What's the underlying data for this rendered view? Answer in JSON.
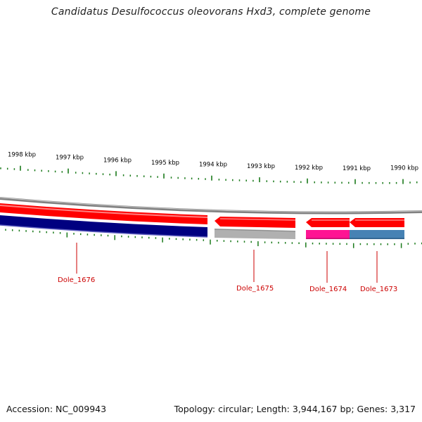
{
  "title": "Candidatus Desulfococcus oleovorans Hxd3, complete genome",
  "footer": {
    "accession": "Accession: NC_009943",
    "summary": "Topology: circular; Length: 3,944,167 bp; Genes: 3,317"
  },
  "ruler": {
    "ticks": [
      {
        "kbp": 1998,
        "label": "1998 kbp"
      },
      {
        "kbp": 1997,
        "label": "1997 kbp"
      },
      {
        "kbp": 1996,
        "label": "1996 kbp"
      },
      {
        "kbp": 1995,
        "label": "1995 kbp"
      },
      {
        "kbp": 1994,
        "label": "1994 kbp"
      },
      {
        "kbp": 1993,
        "label": "1993 kbp"
      },
      {
        "kbp": 1992,
        "label": "1992 kbp"
      },
      {
        "kbp": 1991,
        "label": "1991 kbp"
      },
      {
        "kbp": 1990,
        "label": "1990 kbp"
      }
    ],
    "color": "#1a7a1a"
  },
  "genes": [
    {
      "id": "Dole_1676",
      "label": "Dole_1676",
      "strand": "minus",
      "cds_color": "#ff0000",
      "feature_color": "#000080"
    },
    {
      "id": "Dole_1675",
      "label": "Dole_1675",
      "strand": "minus",
      "cds_color": "#ff0000",
      "feature_color": "#b0b0b0"
    },
    {
      "id": "Dole_1674",
      "label": "Dole_1674",
      "strand": "minus",
      "cds_color": "#ff0000",
      "feature_color": "#ff1493"
    },
    {
      "id": "Dole_1673",
      "label": "Dole_1673",
      "strand": "minus",
      "cds_color": "#ff0000",
      "feature_color": "#4682b4"
    }
  ],
  "colors": {
    "backbone": "#808080",
    "label": "#cc0000",
    "tick": "#1a7a1a"
  }
}
